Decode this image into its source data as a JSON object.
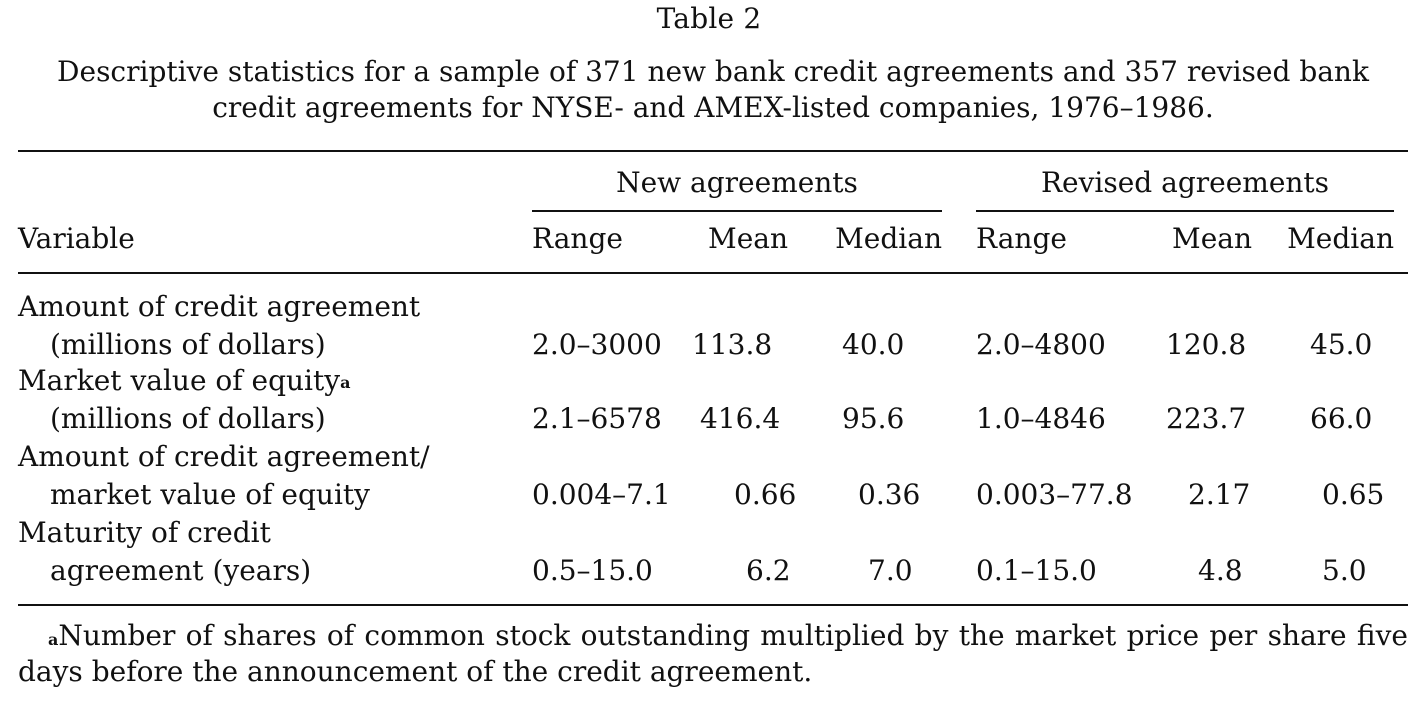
{
  "table": {
    "label": "Table 2",
    "caption": "Descriptive statistics for a sample of 371 new bank credit agreements and 357 revised bank credit agreements for NYSE- and AMEX-listed companies, 1976–1986.",
    "group_headers": [
      "New agreements",
      "Revised agreements"
    ],
    "columns": [
      "Variable",
      "Range",
      "Mean",
      "Median",
      "Range",
      "Mean",
      "Median"
    ],
    "rows": [
      {
        "label_line1": "Amount of credit agreement",
        "label_line2": "(millions of dollars)",
        "label_mark": "",
        "values": [
          "2.0–3000",
          "113.8",
          "40.0",
          "2.0–4800",
          "120.8",
          "45.0"
        ]
      },
      {
        "label_line1": "Market value of equity",
        "label_line2": "(millions of dollars)",
        "label_mark": "a",
        "values": [
          "2.1–6578",
          "416.4",
          "95.6",
          "1.0–4846",
          "223.7",
          "66.0"
        ]
      },
      {
        "label_line1": "Amount of credit agreement/",
        "label_line2": "market value of equity",
        "label_mark": "",
        "values": [
          "0.004–7.1",
          "0.66",
          "0.36",
          "0.003–77.8",
          "2.17",
          "0.65"
        ]
      },
      {
        "label_line1": "Maturity of credit",
        "label_line2": "agreement (years)",
        "label_mark": "",
        "values": [
          "0.5–15.0",
          "6.2",
          "7.0",
          "0.1–15.0",
          "4.8",
          "5.0"
        ]
      }
    ],
    "footnote": {
      "mark": "a",
      "line1": "Number of shares of common stock outstanding multiplied by the market price per share five",
      "line2": "days before the announcement of the credit agreement."
    }
  }
}
